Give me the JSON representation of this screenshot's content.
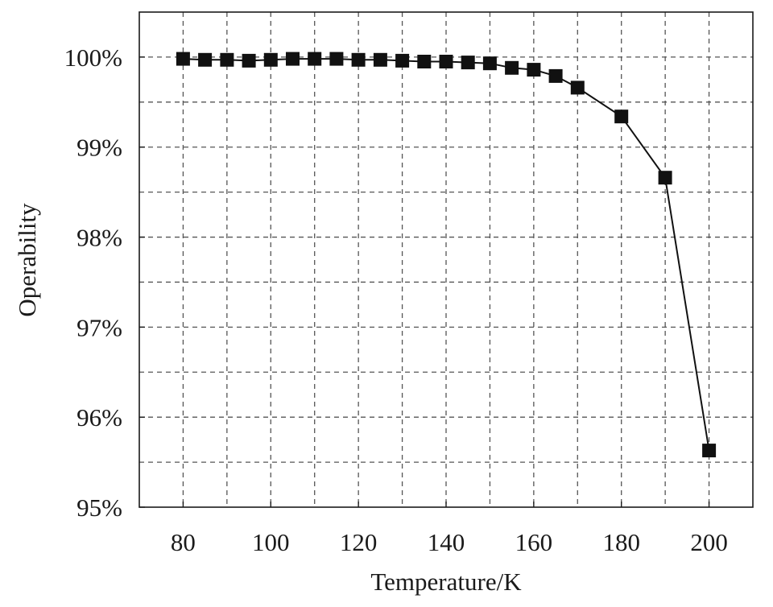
{
  "chart_data": {
    "type": "line",
    "title": "",
    "xlabel": "Temperature/K",
    "ylabel": "Operability",
    "xlim": [
      70,
      210
    ],
    "ylim": [
      95,
      100.5
    ],
    "xticks": [
      80,
      100,
      120,
      140,
      160,
      180,
      200
    ],
    "xtick_labels": [
      "80",
      "100",
      "120",
      "140",
      "160",
      "180",
      "200"
    ],
    "x_minor_grid": [
      90,
      110,
      130,
      150,
      170,
      190
    ],
    "yticks": [
      95,
      96,
      97,
      98,
      99,
      100
    ],
    "ytick_labels": [
      "95%",
      "96%",
      "97%",
      "98%",
      "99%",
      "100%"
    ],
    "y_minor_grid": [
      95.5,
      96.5,
      97.5,
      98.5,
      99.5
    ],
    "grid": true,
    "legend": "none",
    "marker": "square",
    "color": "#111111",
    "series": [
      {
        "x": [
          80,
          85,
          90,
          95,
          100,
          105,
          110,
          115,
          120,
          125,
          130,
          135,
          140,
          145,
          150,
          155,
          160,
          165,
          170,
          180,
          190,
          200
        ],
        "y": [
          99.98,
          99.97,
          99.97,
          99.96,
          99.97,
          99.98,
          99.98,
          99.98,
          99.97,
          99.97,
          99.96,
          99.95,
          99.95,
          99.94,
          99.93,
          99.88,
          99.86,
          99.79,
          99.66,
          99.34,
          98.66,
          95.63
        ]
      }
    ]
  }
}
